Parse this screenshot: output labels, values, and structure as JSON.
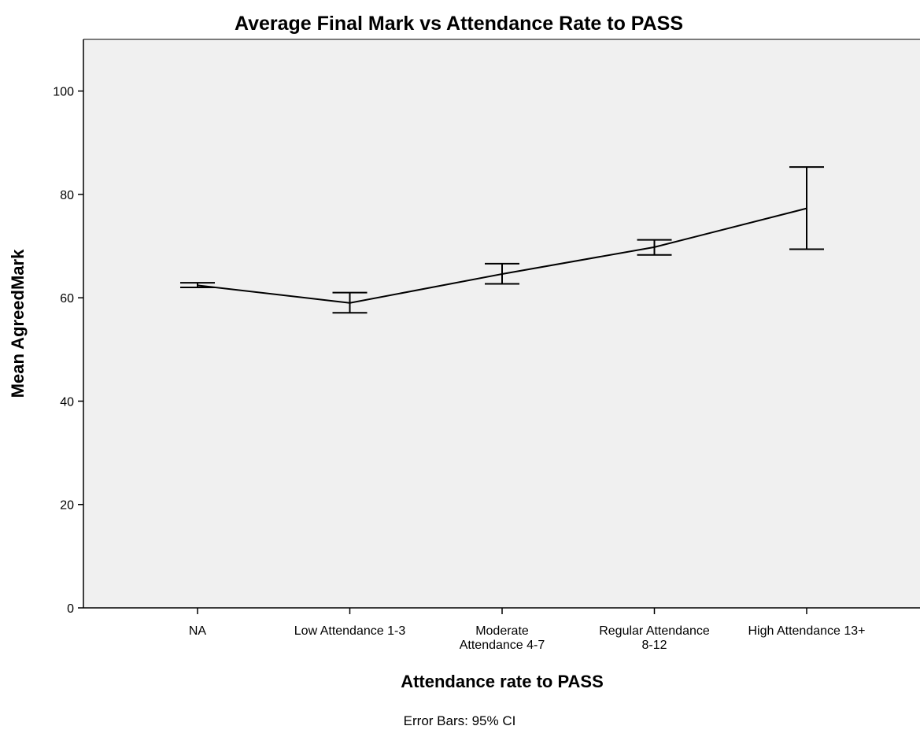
{
  "chart_data": {
    "type": "line",
    "title": "Average Final Mark vs Attendance Rate to PASS",
    "xlabel": "Attendance rate to PASS",
    "ylabel": "Mean AgreedMark",
    "categories": [
      [
        "NA"
      ],
      [
        "Low Attendance 1-3"
      ],
      [
        "Moderate",
        "Attendance 4-7"
      ],
      [
        "Regular  Attendance",
        "8-12"
      ],
      [
        "High Attendance 13+"
      ]
    ],
    "series": [
      {
        "values": [
          62.4,
          59.0,
          64.6,
          69.8,
          77.3
        ],
        "ci_lower": [
          62.0,
          57.1,
          62.7,
          68.3,
          69.4
        ],
        "ci_upper": [
          62.9,
          61.0,
          66.6,
          71.2,
          85.3
        ]
      }
    ],
    "ylim": [
      0,
      110
    ],
    "yticks": [
      0,
      20,
      40,
      60,
      80,
      100
    ],
    "grid": false,
    "error_bars": "95% CI",
    "footnote": "Error Bars: 95% CI"
  },
  "colors": {
    "plot_background": "#f0f0f0",
    "line": "#000000"
  }
}
